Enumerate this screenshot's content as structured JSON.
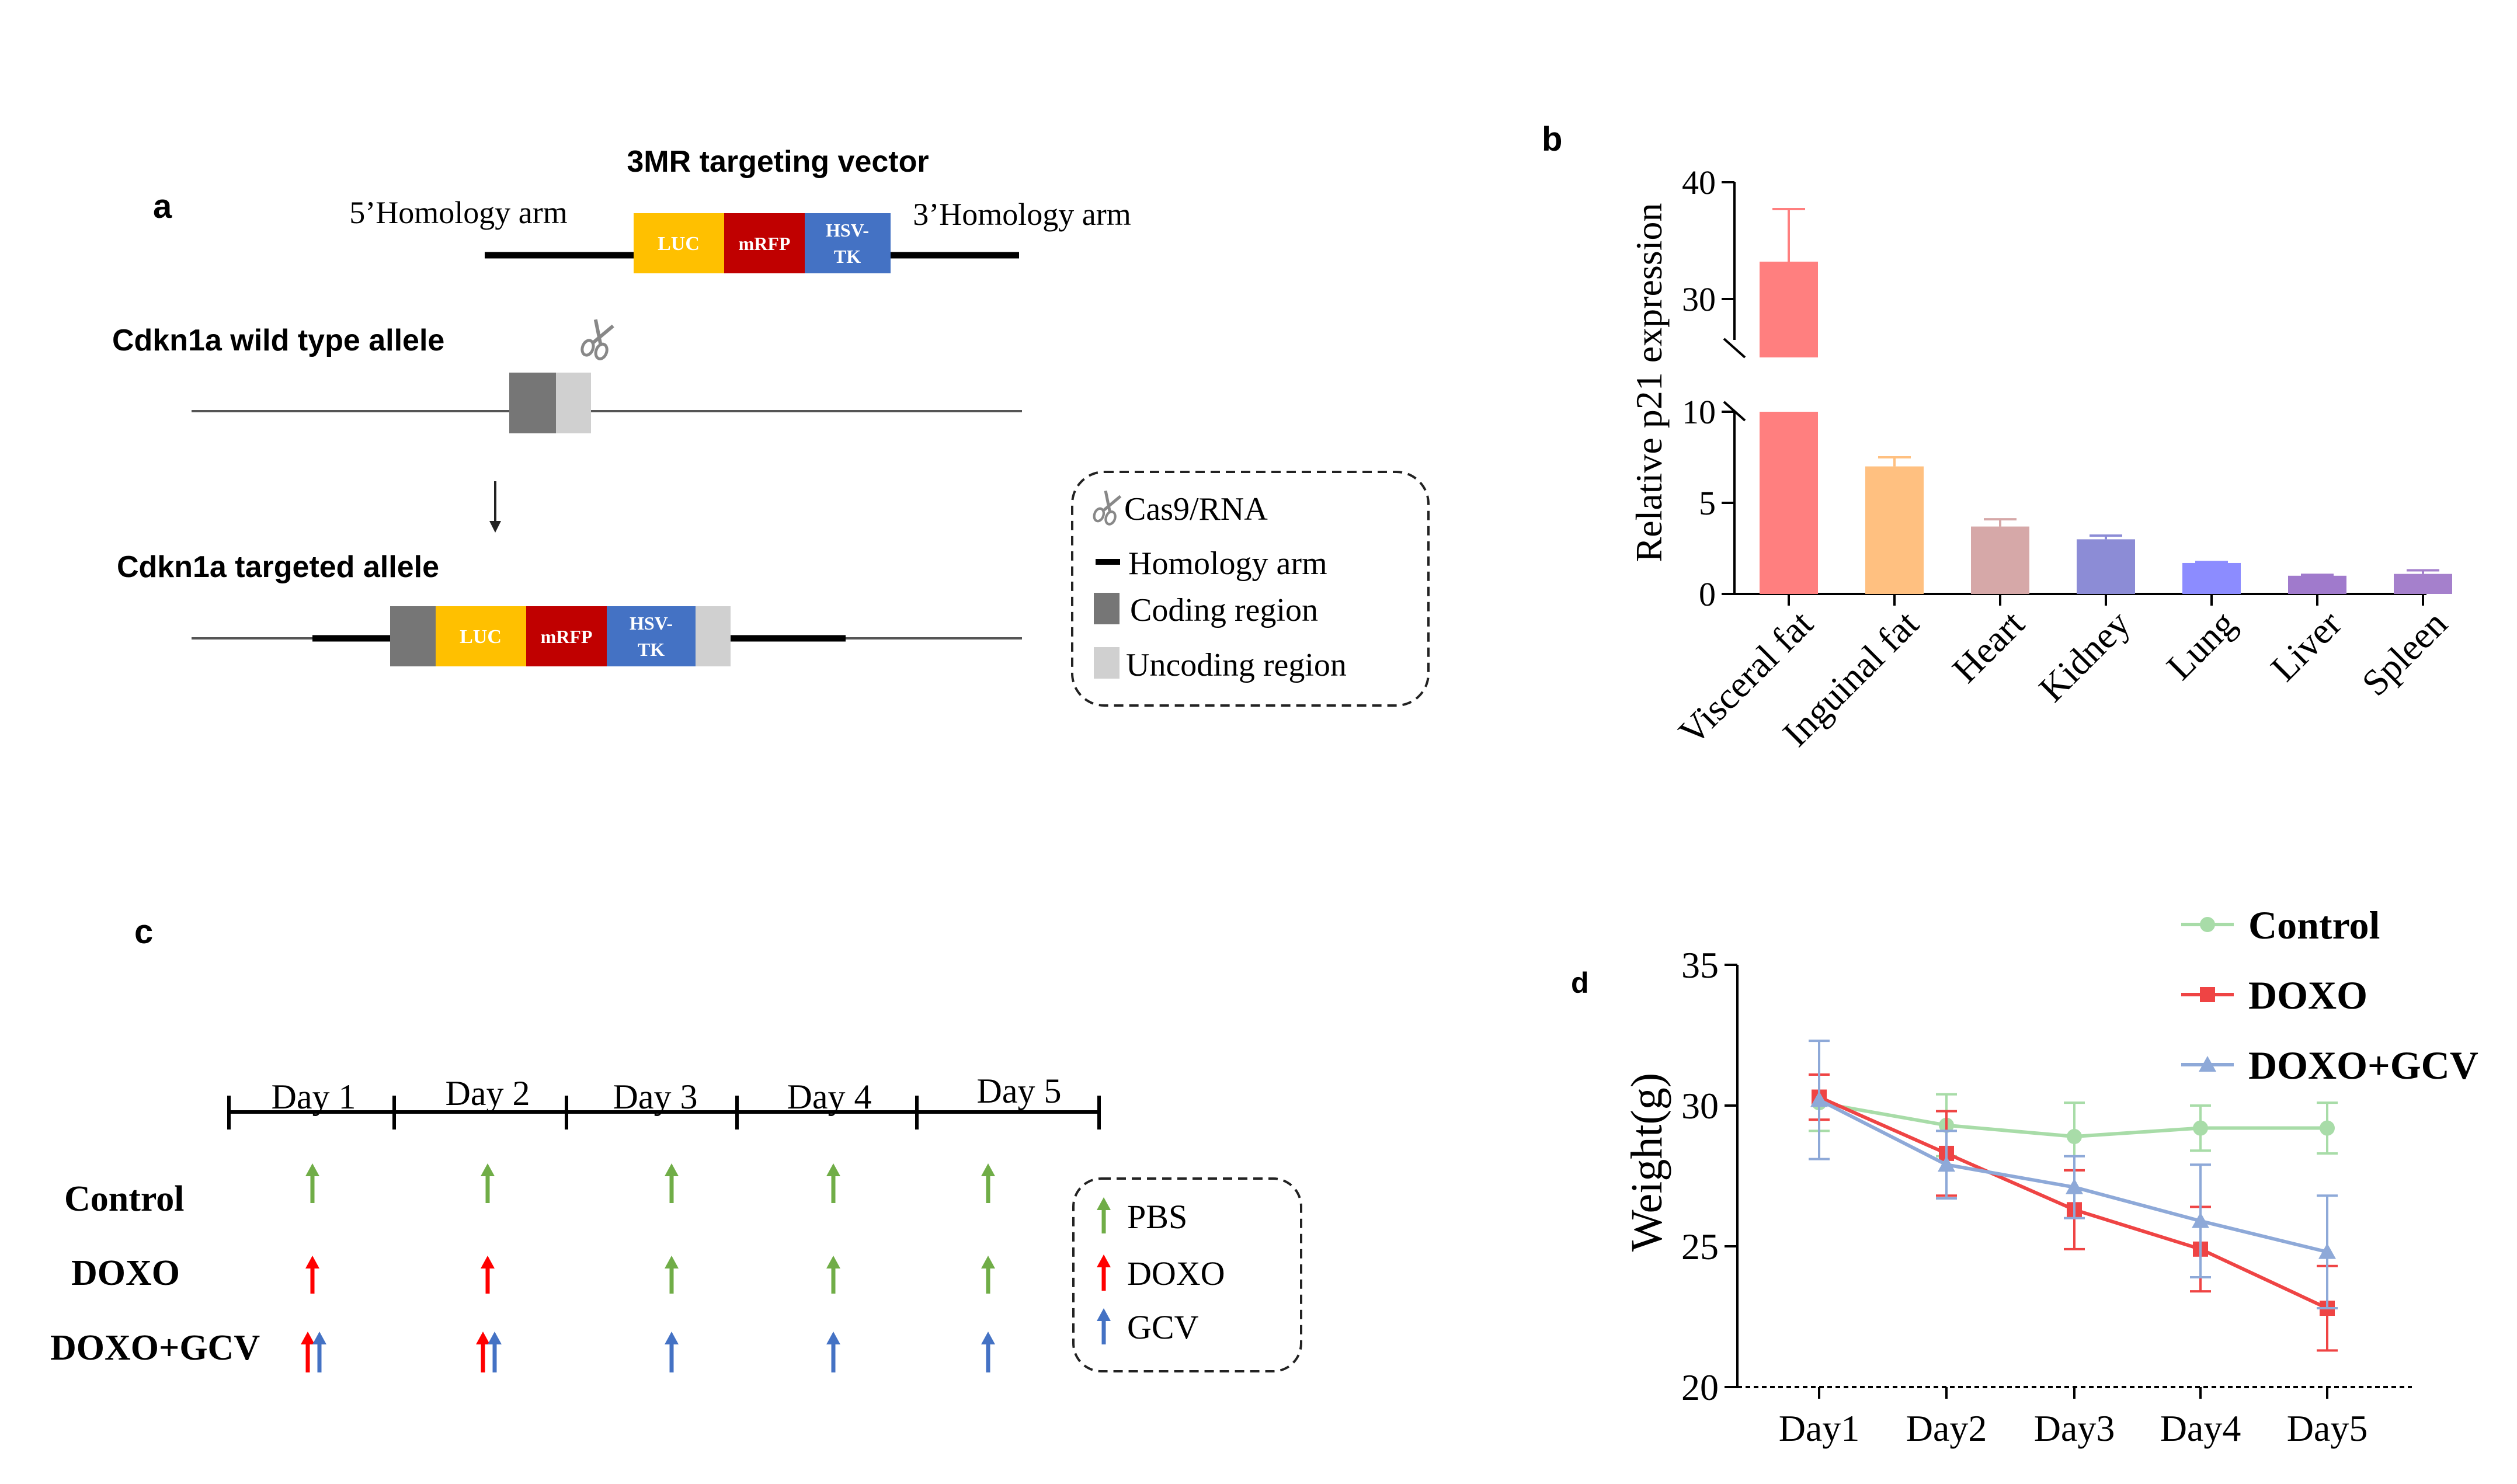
{
  "panel_labels": {
    "a": "a",
    "b": "b",
    "c": "c",
    "d": "d"
  },
  "panel_a": {
    "vector_title": "3MR targeting vector",
    "left_arm": "5’Homology arm",
    "right_arm": "3’Homology arm",
    "luc": "LUC",
    "mrfp": "mRFP",
    "hsv": "HSV-",
    "tk": "TK",
    "wt_title": "Cdkn1a wild type allele",
    "targeted_title": "Cdkn1a targeted allele",
    "legend": {
      "cas9": "Cas9/RNA",
      "homology": "Homology arm",
      "coding": "Coding region",
      "uncoding": "Uncoding region"
    },
    "colors": {
      "luc": "#ffc000",
      "mrfp": "#c00000",
      "hsv": "#4472c4",
      "coding": "#767676",
      "uncoding": "#d0d0d0"
    }
  },
  "panel_c": {
    "days": [
      "Day 1",
      "Day 2",
      "Day 3",
      "Day 4",
      "Day 5"
    ],
    "groups": [
      "Control",
      "DOXO",
      "DOXO+GCV"
    ],
    "legend": [
      "PBS",
      "DOXO",
      "GCV"
    ],
    "colors": {
      "pbs": "#70ad47",
      "doxo": "#ff0000",
      "gcv": "#4472c4"
    }
  },
  "chart_data": [
    {
      "type": "bar",
      "panel": "b",
      "categories": [
        "Visceral fat",
        "Inguinal fat",
        "Heart",
        "Kidney",
        "Lung",
        "Liver",
        "Spleen"
      ],
      "values": [
        33.2,
        7.0,
        3.7,
        3.0,
        1.7,
        1.0,
        1.1
      ],
      "errors": [
        4.5,
        0.5,
        0.4,
        0.2,
        0.05,
        0.05,
        0.2
      ],
      "colors": [
        "#ff7f7f",
        "#ffc080",
        "#d6a8a8",
        "#8c8cd6",
        "#8c8cff",
        "#a07acc",
        "#a580cc"
      ],
      "ylabel": "Relative  p21 expression",
      "xlabel": "",
      "ylim": [
        0,
        40
      ],
      "axis_break": [
        10,
        25
      ],
      "yticks_lower": [
        0,
        5,
        10
      ],
      "yticks_upper": [
        30,
        40
      ]
    },
    {
      "type": "line",
      "panel": "d",
      "x": [
        "Day1",
        "Day2",
        "Day3",
        "Day4",
        "Day5"
      ],
      "series": [
        {
          "name": "Control",
          "values": [
            30.1,
            29.3,
            28.9,
            29.2,
            29.2
          ],
          "errors": [
            1.0,
            1.1,
            1.2,
            0.8,
            0.9
          ],
          "color": "#a8dca8",
          "marker": "circle"
        },
        {
          "name": "DOXO",
          "values": [
            30.3,
            28.3,
            26.3,
            24.9,
            22.8
          ],
          "errors": [
            0.8,
            1.5,
            1.4,
            1.5,
            1.5
          ],
          "color": "#ef4444",
          "marker": "square"
        },
        {
          "name": "DOXO+GCV",
          "values": [
            30.2,
            27.9,
            27.1,
            25.9,
            24.8
          ],
          "errors": [
            2.1,
            1.2,
            1.1,
            2.0,
            2.0
          ],
          "color": "#8ea9d8",
          "marker": "triangle"
        }
      ],
      "ylabel": "Weight(g)",
      "xlabel": "",
      "ylim": [
        20,
        35
      ],
      "yticks": [
        20,
        25,
        30,
        35
      ]
    }
  ]
}
